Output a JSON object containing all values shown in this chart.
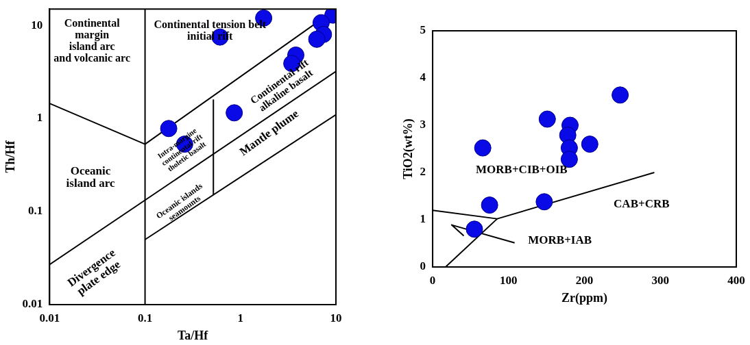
{
  "chart_data": [
    {
      "type": "scatter",
      "xlabel": "Ta/Hf",
      "ylabel": "Th/Hf",
      "log": "xy",
      "xlim": [
        0.01,
        10
      ],
      "ylim": [
        0.01,
        15
      ],
      "xticks": [
        0.01,
        0.1,
        1,
        10
      ],
      "yticks": [
        0.01,
        0.1,
        1,
        10
      ],
      "ref_lines": [
        {
          "axis": "x",
          "value": 0.1,
          "color": "#000000"
        }
      ],
      "series": [
        {
          "color": "#0a0ae6",
          "marker": "circle",
          "x": [
            1.75,
            0.61,
            9.3,
            7.0,
            7.4,
            6.3,
            3.8,
            3.45,
            0.86,
            0.177,
            0.26
          ],
          "values": [
            12,
            7.5,
            12.9,
            10.7,
            8.0,
            7.1,
            4.8,
            3.9,
            1.15,
            0.78,
            0.53
          ]
        },
        {
          "type": "line",
          "color": "#000000",
          "marker": "none",
          "x": [
            0.01,
            0.1,
            10
          ],
          "values": [
            1.45,
            0.53,
            15
          ]
        },
        {
          "type": "line",
          "color": "#000000",
          "marker": "none",
          "x": [
            0.01,
            10
          ],
          "values": [
            0.027,
            3.2
          ]
        },
        {
          "type": "line",
          "color": "#000000",
          "marker": "none",
          "x": [
            0.1,
            10
          ],
          "values": [
            0.05,
            1.1
          ]
        },
        {
          "type": "line",
          "color": "#000000",
          "marker": "none",
          "x": [
            0.52,
            0.52
          ],
          "values": [
            0.15,
            1.6
          ]
        }
      ],
      "annotations": [
        "Continental\nmargin\nisland arc\nand volcanic arc",
        "Continental tension belt\ninitial rift",
        "Oceanic\nisland arc",
        "Continental rift\nalkaline basalt",
        "Mantle plume",
        "Intra-margine\ncontinental rift\ntholetic basalt",
        "Oceanic islands\nseamounts",
        "Divergence\nplate edge"
      ]
    },
    {
      "type": "scatter",
      "xlabel": "Zr(ppm)",
      "ylabel": "TiO2(wt%)",
      "xlim": [
        0,
        400
      ],
      "ylim": [
        0,
        5
      ],
      "xticks": [
        0,
        100,
        200,
        300,
        400
      ],
      "yticks": [
        0,
        1,
        2,
        3,
        4,
        5
      ],
      "series": [
        {
          "color": "#0a0ae6",
          "marker": "circle",
          "x": [
            66,
            151,
            181,
            178,
            180,
            180,
            207,
            247,
            75,
            147,
            55
          ],
          "values": [
            2.52,
            3.13,
            3.0,
            2.79,
            2.52,
            2.28,
            2.6,
            3.64,
            1.31,
            1.38,
            0.8
          ]
        },
        {
          "type": "line",
          "color": "#000000",
          "marker": "none",
          "x": [
            0,
            85,
            292
          ],
          "values": [
            1.2,
            1.02,
            2.0
          ]
        },
        {
          "type": "line",
          "color": "#000000",
          "marker": "none",
          "x": [
            17,
            85
          ],
          "values": [
            0,
            1.02
          ]
        },
        {
          "type": "line",
          "color": "#000000",
          "marker": "none",
          "x": [
            108,
            25,
            41
          ],
          "values": [
            0.51,
            0.89,
            0.66
          ]
        }
      ],
      "annotations": [
        "MORB+CIB+OIB",
        "CAB+CRB",
        "MORB+IAB"
      ]
    }
  ]
}
